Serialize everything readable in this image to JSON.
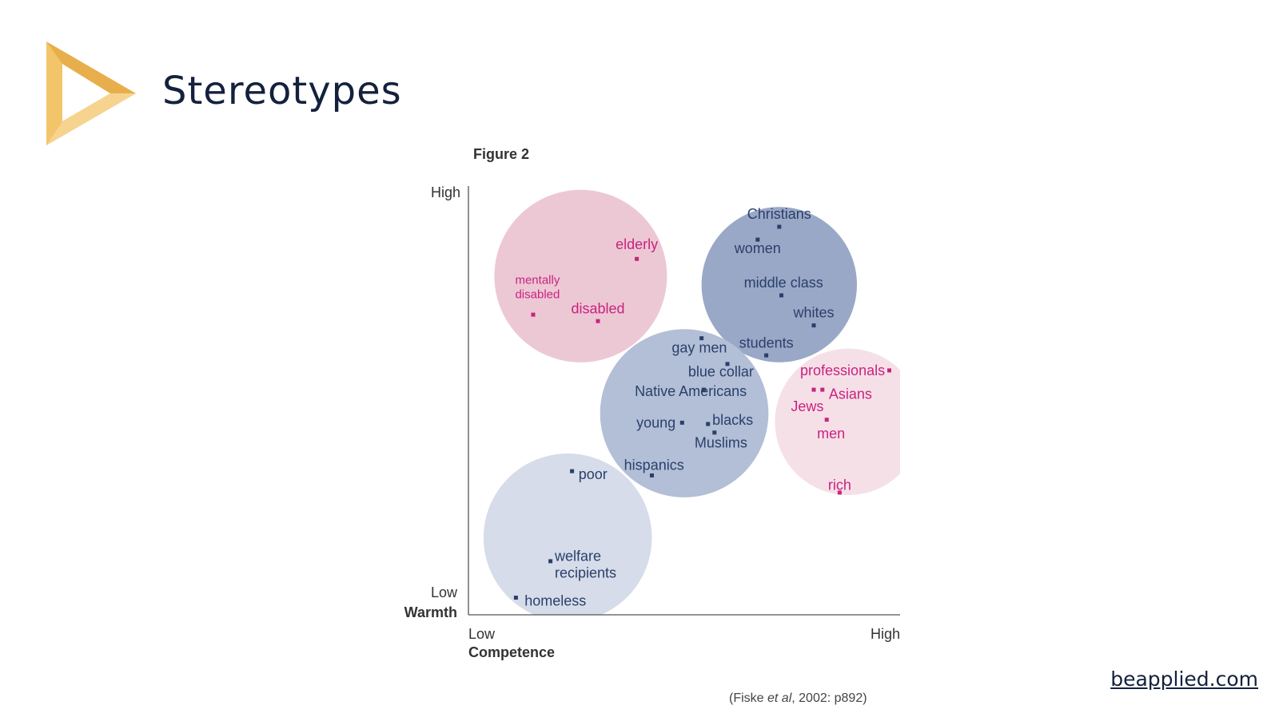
{
  "slide": {
    "title": "Stereotypes",
    "figure_label": "Figure 2",
    "citation": {
      "pre": "(Fiske ",
      "italic": "et al",
      "post": ", 2002: p892)"
    },
    "site_link": "beapplied.com"
  },
  "colors": {
    "logo_gold": "#e8ae4c",
    "logo_light": "#f6d48f",
    "title": "#14213d",
    "pink_label": "#c9237f",
    "navy_label": "#2a3f6b"
  },
  "chart_data": {
    "type": "scatter",
    "title": "",
    "xlabel": "Competence",
    "ylabel": "Warmth",
    "x_ticks": [
      "Low",
      "High"
    ],
    "y_ticks": [
      "Low",
      "High"
    ],
    "xlim": [
      0,
      100
    ],
    "ylim": [
      0,
      100
    ],
    "grid": false,
    "clusters": [
      {
        "cx": 26,
        "cy": 79,
        "r": 20,
        "fill": "#ecc8d5"
      },
      {
        "cx": 72,
        "cy": 77,
        "r": 18,
        "fill": "#99a8c6"
      },
      {
        "cx": 50,
        "cy": 47,
        "r": 19.5,
        "fill": "#b2bfd6"
      },
      {
        "cx": 88,
        "cy": 45,
        "r": 17,
        "fill": "#f6e0e8"
      },
      {
        "cx": 23,
        "cy": 18,
        "r": 19.5,
        "fill": "#d6dce9"
      }
    ],
    "points": [
      {
        "label": "elderly",
        "x": 39,
        "y": 83,
        "color": "#c9237f",
        "lx": 39,
        "ly": 86.5,
        "anchor": "middle",
        "size": 18
      },
      {
        "label": "mentally disabled",
        "lines": [
          "mentally",
          "disabled"
        ],
        "x": 15,
        "y": 70,
        "color": "#c9237f",
        "lx": 16,
        "ly": 76.5,
        "anchor": "middle",
        "size": 15
      },
      {
        "label": "disabled",
        "x": 30,
        "y": 68.5,
        "color": "#c9237f",
        "lx": 30,
        "ly": 71.5,
        "anchor": "middle",
        "size": 18
      },
      {
        "label": "Christians",
        "x": 72,
        "y": 90.5,
        "color": "#2a3f6b",
        "lx": 72,
        "ly": 93.5,
        "anchor": "middle",
        "size": 18
      },
      {
        "label": "women",
        "x": 67,
        "y": 87.5,
        "color": "#2a3f6b",
        "lx": 67,
        "ly": 85.5,
        "anchor": "middle",
        "size": 18
      },
      {
        "label": "middle class",
        "x": 72.5,
        "y": 74.5,
        "color": "#2a3f6b",
        "lx": 73,
        "ly": 77.5,
        "anchor": "middle",
        "size": 18
      },
      {
        "label": "whites",
        "x": 80,
        "y": 67.5,
        "color": "#2a3f6b",
        "lx": 80,
        "ly": 70.5,
        "anchor": "middle",
        "size": 18
      },
      {
        "label": "students",
        "x": 69,
        "y": 60.5,
        "color": "#2a3f6b",
        "lx": 69,
        "ly": 63.5,
        "anchor": "middle",
        "size": 18
      },
      {
        "label": "gay men",
        "x": 54,
        "y": 64.5,
        "color": "#2a3f6b",
        "lx": 53.5,
        "ly": 62.3,
        "anchor": "middle",
        "size": 18
      },
      {
        "label": "blue collar",
        "x": 60,
        "y": 58.5,
        "color": "#2a3f6b",
        "lx": 58.5,
        "ly": 56.8,
        "anchor": "middle",
        "size": 18
      },
      {
        "label": "Native Americans",
        "x": 54.5,
        "y": 52.5,
        "color": "#2a3f6b",
        "lx": 51.5,
        "ly": 52.2,
        "anchor": "middle",
        "size": 18
      },
      {
        "label": "young",
        "x": 49.5,
        "y": 44.8,
        "color": "#2a3f6b",
        "lx": 48,
        "ly": 44.8,
        "anchor": "end",
        "size": 18
      },
      {
        "label": "blacks",
        "x": 55.5,
        "y": 44.5,
        "color": "#2a3f6b",
        "lx": 56.5,
        "ly": 45.5,
        "anchor": "start",
        "size": 18
      },
      {
        "label": "Muslims",
        "x": 57,
        "y": 42.5,
        "color": "#2a3f6b",
        "lx": 58.5,
        "ly": 40.2,
        "anchor": "middle",
        "size": 18
      },
      {
        "label": "hispanics",
        "x": 42.5,
        "y": 32.5,
        "color": "#2a3f6b",
        "lx": 43,
        "ly": 35,
        "anchor": "middle",
        "size": 18
      },
      {
        "label": "professionals",
        "x": 97.5,
        "y": 57,
        "color": "#c9237f",
        "lx": 96.5,
        "ly": 57,
        "anchor": "end",
        "size": 18
      },
      {
        "label": "Asians",
        "x": 82,
        "y": 52.5,
        "color": "#c9237f",
        "lx": 83.5,
        "ly": 51.5,
        "anchor": "start",
        "size": 18
      },
      {
        "label": "Jews",
        "x": 80,
        "y": 52.5,
        "color": "#c9237f",
        "lx": 78.5,
        "ly": 48.7,
        "anchor": "middle",
        "size": 18
      },
      {
        "label": "men",
        "x": 83,
        "y": 45.5,
        "color": "#c9237f",
        "lx": 84,
        "ly": 42.3,
        "anchor": "middle",
        "size": 18
      },
      {
        "label": "rich",
        "x": 86,
        "y": 28.5,
        "color": "#c9237f",
        "lx": 86,
        "ly": 30.3,
        "anchor": "middle",
        "size": 18
      },
      {
        "label": "poor",
        "x": 24,
        "y": 33.5,
        "color": "#2a3f6b",
        "lx": 25.5,
        "ly": 32.8,
        "anchor": "start",
        "size": 18
      },
      {
        "label": "welfare recipients",
        "lines": [
          "welfare",
          "recipients"
        ],
        "x": 19,
        "y": 12.5,
        "color": "#2a3f6b",
        "lx": 20,
        "ly": 11.8,
        "anchor": "start",
        "size": 18
      },
      {
        "label": "homeless",
        "x": 11,
        "y": 4,
        "color": "#2a3f6b",
        "lx": 13,
        "ly": 3.3,
        "anchor": "start",
        "size": 18
      }
    ]
  }
}
